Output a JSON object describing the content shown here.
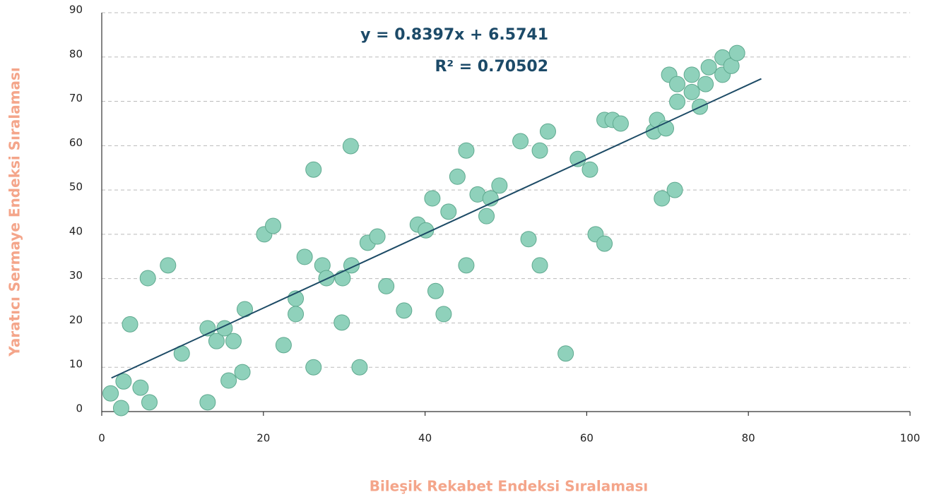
{
  "chart_data": {
    "type": "scatter",
    "annotations": [
      "y = 0.8397x + 6.5741",
      "R² = 0.70502"
    ],
    "x_label": "Bileşik Rekabet Endeksi Sıralaması",
    "y_label": "Yaratıcı Sermaye Endeksi Sıralaması",
    "xlim": [
      0,
      100
    ],
    "xticks": [
      0,
      20,
      40,
      60,
      80,
      100
    ],
    "ylim": [
      0,
      90
    ],
    "yticks": [
      0,
      10,
      20,
      30,
      40,
      50,
      60,
      70,
      80,
      90
    ],
    "grid": true,
    "color": "#8fd1bb",
    "edge_color": "#5fa98f",
    "trendline": {
      "slope": 0.8397,
      "intercept": 6.5741,
      "x": [
        1.2,
        81.6
      ],
      "color": "#1d4b66"
    },
    "x": [
      1.1,
      2.4,
      2.7,
      3.5,
      4.8,
      5.7,
      5.9,
      8.2,
      9.9,
      13.1,
      13.1,
      14.2,
      15.2,
      15.7,
      16.3,
      17.4,
      17.7,
      20.1,
      21.2,
      22.5,
      24,
      24,
      25.1,
      26.2,
      26.2,
      27.3,
      27.8,
      29.7,
      29.8,
      30.9,
      30.8,
      31.9,
      32.9,
      34.1,
      35.2,
      37.4,
      39.1,
      40.1,
      40.9,
      41.3,
      42.3,
      42.9,
      44,
      45.1,
      45.1,
      46.5,
      48.1,
      47.6,
      49.2,
      51.8,
      52.8,
      54.2,
      54.2,
      55.2,
      57.4,
      58.9,
      60.4,
      61.1,
      62.2,
      62.2,
      63.2,
      64.2,
      68.3,
      68.7,
      69.3,
      69.8,
      70.2,
      70.9,
      71.2,
      71.2,
      73,
      73,
      74,
      74.7,
      75.1,
      76.8,
      76.8,
      77.9,
      78.6
    ],
    "values": [
      4.1,
      0.8,
      6.8,
      19.7,
      5.4,
      30.1,
      2.1,
      33,
      13.1,
      18.8,
      2.1,
      15.9,
      18.8,
      7,
      15.9,
      8.9,
      23.1,
      40,
      41.9,
      15,
      25.5,
      22,
      34.9,
      10,
      54.6,
      33,
      30.1,
      20.1,
      30.1,
      33,
      59.9,
      10,
      38.1,
      39.5,
      28.3,
      22.8,
      42.2,
      40.9,
      48.1,
      27.2,
      22,
      45.1,
      53,
      58.9,
      33,
      49,
      48.1,
      44.1,
      51,
      61,
      38.9,
      58.9,
      33,
      63.2,
      13.1,
      57,
      54.6,
      40,
      37.9,
      65.8,
      65.8,
      65,
      63.2,
      65.8,
      48.1,
      63.9,
      76,
      50,
      73.9,
      69.9,
      76,
      72.1,
      68.8,
      73.9,
      77.7,
      76,
      79.9,
      78,
      80.9
    ]
  }
}
